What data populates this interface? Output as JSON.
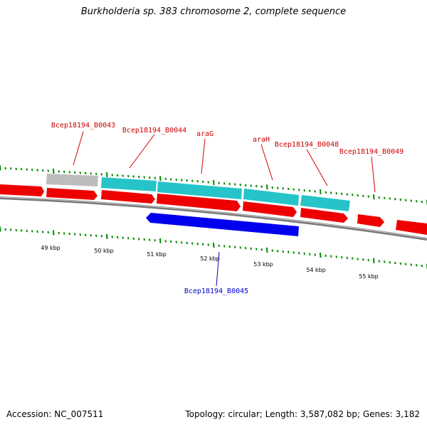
{
  "title": "Burkholderia sp. 383 chromosome 2, complete sequence",
  "footer": {
    "accession": "Accession: NC_007511",
    "summary": "Topology: circular; Length: 3,587,082 bp; Genes: 3,182"
  },
  "colors": {
    "forward_feature": "#ee0000",
    "forward_cds": "#26c4c8",
    "forward_other": "#bdbdbd",
    "reverse_feature": "#0000ee",
    "backbone": "#7a7a7a",
    "tick": "#008800",
    "label_forward": "#cc0000",
    "label_reverse": "#0000cc"
  },
  "scale": {
    "tick_labels": [
      "49 kbp",
      "50 kbp",
      "51 kbp",
      "52 kbp",
      "53 kbp",
      "54 kbp",
      "55 kbp"
    ]
  },
  "gene_labels": [
    {
      "id": "b0043",
      "text": "Bcep18194_B0043",
      "strand": "forward"
    },
    {
      "id": "b0044",
      "text": "Bcep18194_B0044",
      "strand": "forward"
    },
    {
      "id": "arag",
      "text": "araG",
      "strand": "forward"
    },
    {
      "id": "arah",
      "text": "araH",
      "strand": "forward"
    },
    {
      "id": "b0048",
      "text": "Bcep18194_B0048",
      "strand": "forward"
    },
    {
      "id": "b0049",
      "text": "Bcep18194_B0049",
      "strand": "forward"
    },
    {
      "id": "b0045",
      "text": "Bcep18194_B0045",
      "strand": "reverse"
    }
  ]
}
